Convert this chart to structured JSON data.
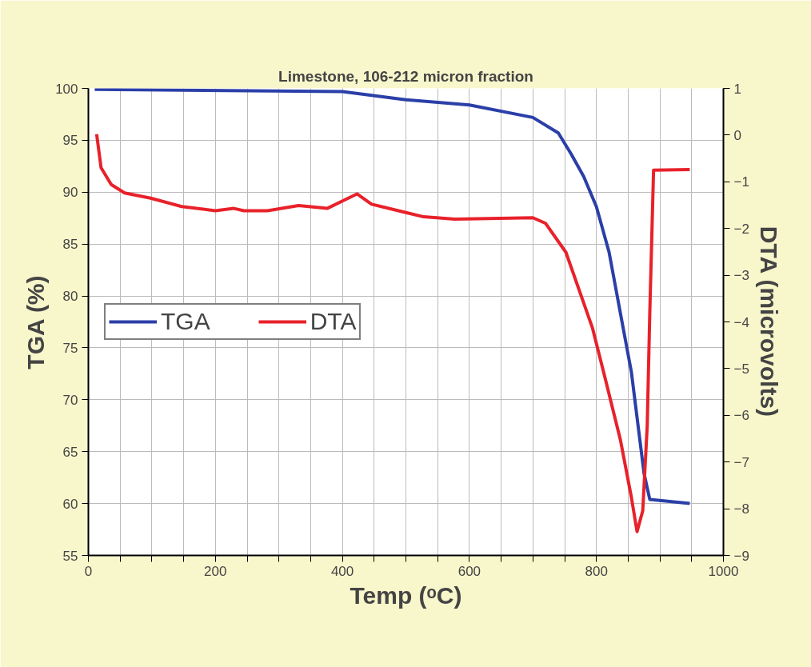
{
  "chart_data": {
    "type": "line",
    "title": "Limestone, 106-212 micron fraction",
    "xlabel": "Temp (ᵒC)",
    "ylabel": "TGA (%)",
    "y2label": "DTA (microvolts)",
    "xlim": [
      0,
      1000
    ],
    "xticks": [
      0,
      {
        "value": 50,
        "label": null
      },
      200,
      {
        "value": 100,
        "label": null
      },
      400,
      {
        "value": 150,
        "label": null
      },
      {
        "value": 250,
        "label": null
      },
      {
        "value": 300,
        "label": null
      },
      {
        "value": 350,
        "label": null
      },
      {
        "value": 450,
        "label": null
      },
      {
        "value": 500,
        "label": null
      },
      {
        "value": 550,
        "label": null
      },
      600,
      {
        "value": 650,
        "label": null
      },
      {
        "value": 700,
        "label": null
      },
      {
        "value": 750,
        "label": null
      },
      800,
      {
        "value": 850,
        "label": null
      },
      {
        "value": 900,
        "label": null
      },
      {
        "value": 950,
        "label": null
      },
      1000
    ],
    "ylim": [
      55,
      100
    ],
    "yticks": [
      55,
      60,
      65,
      70,
      75,
      80,
      85,
      90,
      95,
      100
    ],
    "y2lim": [
      -9,
      1
    ],
    "y2ticks": [
      -9,
      -8,
      -7,
      -6,
      -5,
      -4,
      -3,
      -2,
      -1,
      0,
      1
    ],
    "grid": true,
    "legend": "left",
    "marker": "none",
    "line_style": "solid",
    "series": [
      {
        "name": "TGA",
        "color": "#2b3fa8",
        "x": [
          10,
          400,
          500,
          600,
          700,
          740,
          760,
          780,
          800,
          820,
          840,
          855,
          875,
          884,
          947
        ],
        "values": [
          99.9,
          99.7,
          98.9,
          98.4,
          97.2,
          95.7,
          93.7,
          91.5,
          88.6,
          84.2,
          77.6,
          72.7,
          62.9,
          60.4,
          60.0
        ]
      },
      {
        "name": "DTA",
        "color": "#e8212a",
        "axis": "y2",
        "x": [
          13,
          20,
          36,
          57,
          98,
          147,
          200,
          229,
          245,
          282,
          331,
          376,
          423,
          446,
          528,
          577,
          700,
          720,
          752,
          794,
          814,
          838,
          855,
          864,
          873,
          880,
          884,
          890,
          947
        ],
        "values": [
          0.02,
          -0.7,
          -1.06,
          -1.24,
          -1.35,
          -1.53,
          -1.62,
          -1.57,
          -1.62,
          -1.62,
          -1.51,
          -1.57,
          -1.26,
          -1.48,
          -1.75,
          -1.8,
          -1.77,
          -1.89,
          -2.51,
          -4.14,
          -5.22,
          -6.54,
          -7.75,
          -8.49,
          -8.04,
          -6.23,
          -3.83,
          -0.75,
          -0.74
        ]
      }
    ]
  }
}
